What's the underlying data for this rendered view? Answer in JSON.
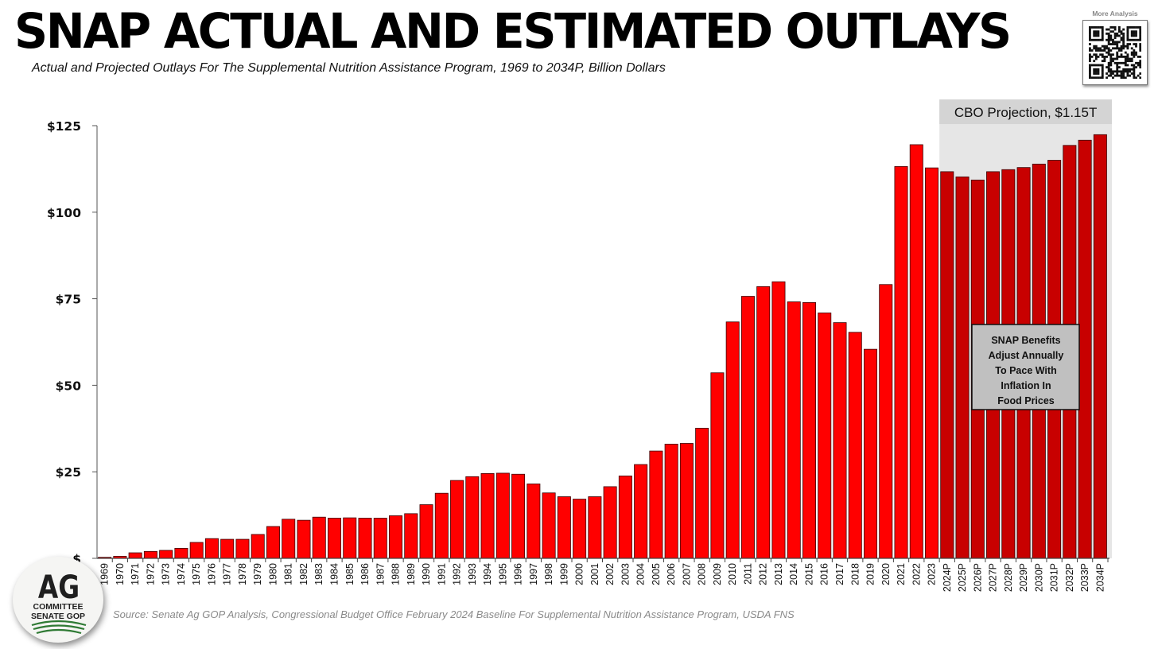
{
  "header": {
    "title": "SNAP ACTUAL AND ESTIMATED OUTLAYS",
    "subtitle": "Actual and Projected Outlays For The Supplemental Nutrition Assistance Program, 1969 to 2034P, Billion Dollars"
  },
  "qr": {
    "label": "More Analysis"
  },
  "footer": {
    "source": "Source: Senate Ag GOP Analysis, Congressional Budget Office February 2024 Baseline For Supplemental Nutrition Assistance Program, USDA FNS"
  },
  "logo": {
    "line1": "AG",
    "line2": "COMMITTEE",
    "line3": "SENATE GOP"
  },
  "colors": {
    "actual_bar": "#ff0000",
    "projected_bar": "#c80000",
    "projection_band": "#e6e6e6",
    "projection_label_bg": "#d4d4d4",
    "annotation_bg": "#c0c0c0"
  },
  "chart_data": {
    "type": "bar",
    "title": "SNAP ACTUAL AND ESTIMATED OUTLAYS",
    "xlabel": "",
    "ylabel": "Billion Dollars",
    "ylim": [
      0,
      125
    ],
    "yticks": [
      0,
      25,
      50,
      75,
      100,
      125
    ],
    "ytick_labels": [
      "$",
      "$25",
      "$50",
      "$75",
      "$100",
      "$125"
    ],
    "categories": [
      "1969",
      "1970",
      "1971",
      "1972",
      "1973",
      "1974",
      "1975",
      "1976",
      "1977",
      "1978",
      "1979",
      "1980",
      "1981",
      "1982",
      "1983",
      "1984",
      "1985",
      "1986",
      "1987",
      "1988",
      "1989",
      "1990",
      "1991",
      "1992",
      "1993",
      "1994",
      "1995",
      "1996",
      "1997",
      "1998",
      "1999",
      "2000",
      "2001",
      "2002",
      "2003",
      "2004",
      "2005",
      "2006",
      "2007",
      "2008",
      "2009",
      "2010",
      "2011",
      "2012",
      "2013",
      "2014",
      "2015",
      "2016",
      "2017",
      "2018",
      "2019",
      "2020",
      "2021",
      "2022",
      "2023",
      "2024P",
      "2025P",
      "2026P",
      "2027P",
      "2028P",
      "2029P",
      "2030P",
      "2031P",
      "2032P",
      "2033P",
      "2034P"
    ],
    "values": [
      0.3,
      0.6,
      1.6,
      2.0,
      2.3,
      2.9,
      4.6,
      5.7,
      5.5,
      5.5,
      6.9,
      9.2,
      11.3,
      11.0,
      11.9,
      11.6,
      11.7,
      11.6,
      11.6,
      12.3,
      12.9,
      15.5,
      18.8,
      22.5,
      23.6,
      24.5,
      24.6,
      24.3,
      21.5,
      18.9,
      17.8,
      17.1,
      17.8,
      20.7,
      23.8,
      27.1,
      31.0,
      33.0,
      33.2,
      37.6,
      53.6,
      68.3,
      75.7,
      78.5,
      79.9,
      74.1,
      73.9,
      70.9,
      68.1,
      65.3,
      60.4,
      79.1,
      113.2,
      119.5,
      112.8,
      111.7,
      110.2,
      109.3,
      111.7,
      112.3,
      112.9,
      113.9,
      115.0,
      119.3,
      120.8,
      122.4
    ],
    "series": [
      {
        "name": "Actual",
        "range": [
          "1969",
          "2023"
        ]
      },
      {
        "name": "CBO Projection",
        "range": [
          "2024P",
          "2034P"
        ]
      }
    ],
    "annotations": {
      "projection_label": "CBO Projection, $1.15T",
      "callout_lines": [
        "SNAP Benefits",
        "Adjust Annually",
        "To Pace With",
        "Inflation In",
        "Food Prices"
      ]
    }
  }
}
